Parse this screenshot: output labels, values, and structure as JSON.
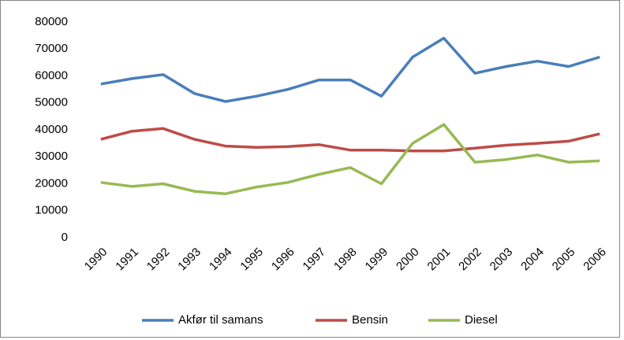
{
  "chart_data": {
    "type": "line",
    "categories": [
      "1990",
      "1991",
      "1992",
      "1993",
      "1994",
      "1995",
      "1996",
      "1997",
      "1998",
      "1999",
      "2000",
      "2001",
      "2002",
      "2003",
      "2004",
      "2005",
      "2006"
    ],
    "series": [
      {
        "name": "Akfør til samans",
        "color": "#4a7ebb",
        "values": [
          57000,
          59000,
          60500,
          53500,
          50500,
          52500,
          55000,
          58500,
          58500,
          52500,
          67000,
          74000,
          61000,
          63500,
          65500,
          63500,
          67000
        ]
      },
      {
        "name": "Bensin",
        "color": "#be4b48",
        "values": [
          36500,
          39500,
          40500,
          36500,
          34000,
          33500,
          33800,
          34500,
          32500,
          32500,
          32200,
          32200,
          33200,
          34300,
          35000,
          35800,
          38500
        ]
      },
      {
        "name": "Diesel",
        "color": "#98b954",
        "values": [
          20500,
          19000,
          20000,
          17200,
          16300,
          18800,
          20500,
          23500,
          26000,
          20000,
          35000,
          42000,
          28000,
          29000,
          30700,
          28000,
          28500
        ]
      }
    ],
    "ylim": [
      0,
      80000
    ],
    "yticks": [
      0,
      10000,
      20000,
      30000,
      40000,
      50000,
      60000,
      70000,
      80000
    ],
    "grid": false,
    "legend": "bottom"
  }
}
